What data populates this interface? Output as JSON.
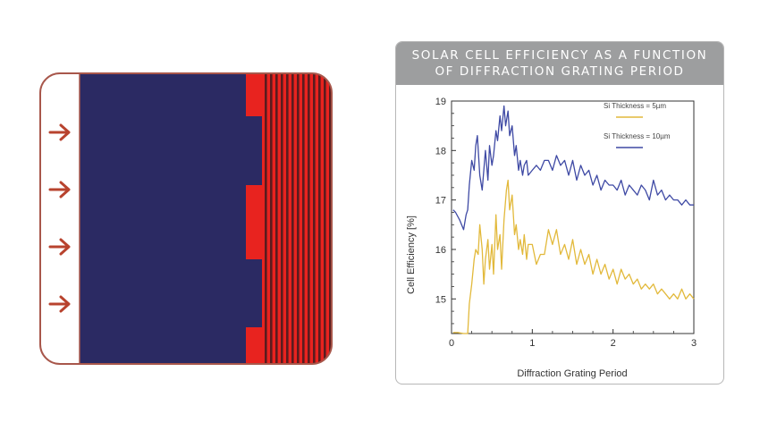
{
  "chart_data": {
    "type": "line",
    "title_line1": "SOLAR CELL EFFICIENCY AS A FUNCTION",
    "title_line2": "OF DIFFRACTION GRATING PERIOD",
    "xlabel": "Diffraction Grating Period",
    "ylabel": "Cell Efficiency [%]",
    "xlim": [
      0,
      3
    ],
    "ylim": [
      14.3,
      19
    ],
    "xticks": [
      "0",
      "1",
      "2",
      "3"
    ],
    "yticks": [
      "15",
      "16",
      "17",
      "18",
      "19"
    ],
    "legend_position": "top-right",
    "series": [
      {
        "name": "Si Thickness = 5µm",
        "color": "#e2b93b",
        "x": [
          0.02,
          0.08,
          0.15,
          0.2,
          0.22,
          0.25,
          0.28,
          0.3,
          0.33,
          0.35,
          0.38,
          0.4,
          0.42,
          0.45,
          0.47,
          0.5,
          0.52,
          0.55,
          0.57,
          0.6,
          0.62,
          0.65,
          0.68,
          0.7,
          0.72,
          0.75,
          0.78,
          0.8,
          0.83,
          0.85,
          0.88,
          0.9,
          0.93,
          0.95,
          1.0,
          1.05,
          1.1,
          1.15,
          1.2,
          1.25,
          1.3,
          1.35,
          1.4,
          1.45,
          1.5,
          1.55,
          1.6,
          1.65,
          1.7,
          1.75,
          1.8,
          1.85,
          1.9,
          1.95,
          2.0,
          2.05,
          2.1,
          2.15,
          2.2,
          2.25,
          2.3,
          2.35,
          2.4,
          2.45,
          2.5,
          2.55,
          2.6,
          2.65,
          2.7,
          2.75,
          2.8,
          2.85,
          2.9,
          2.95,
          3.0
        ],
        "values": [
          14.32,
          14.32,
          14.3,
          14.3,
          14.9,
          15.3,
          15.8,
          16.0,
          15.9,
          16.5,
          16.0,
          15.3,
          15.8,
          16.2,
          15.6,
          16.1,
          15.5,
          16.7,
          16.0,
          16.3,
          15.6,
          16.6,
          17.2,
          17.4,
          16.8,
          17.1,
          16.3,
          16.5,
          16.0,
          16.2,
          15.9,
          16.3,
          15.8,
          16.1,
          16.1,
          15.7,
          15.9,
          15.9,
          16.4,
          16.1,
          16.4,
          15.9,
          16.1,
          15.8,
          16.2,
          15.7,
          16.0,
          15.7,
          15.9,
          15.5,
          15.8,
          15.5,
          15.7,
          15.4,
          15.6,
          15.3,
          15.6,
          15.4,
          15.5,
          15.3,
          15.4,
          15.2,
          15.3,
          15.2,
          15.3,
          15.1,
          15.2,
          15.1,
          15.0,
          15.1,
          15.0,
          15.2,
          15.0,
          15.1,
          15.0
        ]
      },
      {
        "name": "Si Thickness = 10µm",
        "color": "#3e49a4",
        "x": [
          0.02,
          0.05,
          0.1,
          0.15,
          0.18,
          0.2,
          0.22,
          0.25,
          0.28,
          0.3,
          0.32,
          0.35,
          0.38,
          0.4,
          0.42,
          0.45,
          0.47,
          0.5,
          0.52,
          0.55,
          0.57,
          0.6,
          0.62,
          0.65,
          0.67,
          0.7,
          0.72,
          0.75,
          0.78,
          0.8,
          0.83,
          0.85,
          0.88,
          0.9,
          0.93,
          0.95,
          1.0,
          1.05,
          1.1,
          1.15,
          1.2,
          1.25,
          1.3,
          1.35,
          1.4,
          1.45,
          1.5,
          1.55,
          1.6,
          1.65,
          1.7,
          1.75,
          1.8,
          1.85,
          1.9,
          1.95,
          2.0,
          2.05,
          2.1,
          2.15,
          2.2,
          2.25,
          2.3,
          2.35,
          2.4,
          2.45,
          2.5,
          2.55,
          2.6,
          2.65,
          2.7,
          2.75,
          2.8,
          2.85,
          2.9,
          2.95,
          3.0
        ],
        "values": [
          16.8,
          16.75,
          16.6,
          16.4,
          16.7,
          16.8,
          17.3,
          17.8,
          17.6,
          18.1,
          18.3,
          17.5,
          17.2,
          17.6,
          18.0,
          17.4,
          18.1,
          17.7,
          17.9,
          18.4,
          18.2,
          18.7,
          18.4,
          18.9,
          18.5,
          18.8,
          18.3,
          18.5,
          17.9,
          18.1,
          17.6,
          17.8,
          17.5,
          17.7,
          17.8,
          17.5,
          17.6,
          17.7,
          17.6,
          17.8,
          17.8,
          17.6,
          17.9,
          17.7,
          17.8,
          17.5,
          17.8,
          17.4,
          17.7,
          17.5,
          17.6,
          17.3,
          17.5,
          17.2,
          17.4,
          17.3,
          17.3,
          17.2,
          17.4,
          17.1,
          17.3,
          17.2,
          17.1,
          17.3,
          17.2,
          17.0,
          17.4,
          17.1,
          17.2,
          17.0,
          17.1,
          17.0,
          17.0,
          16.9,
          17.0,
          16.9,
          16.9
        ]
      }
    ]
  },
  "diagram": {
    "colors": {
      "frame": "#a8574b",
      "absorber": "#2b2a63",
      "grating_red": "#e8231f",
      "stripe_dark": "#5a1c1f",
      "arrow": "#b8432e"
    },
    "arrow_icon": "arrow-right-icon",
    "arrow_count": 4
  }
}
